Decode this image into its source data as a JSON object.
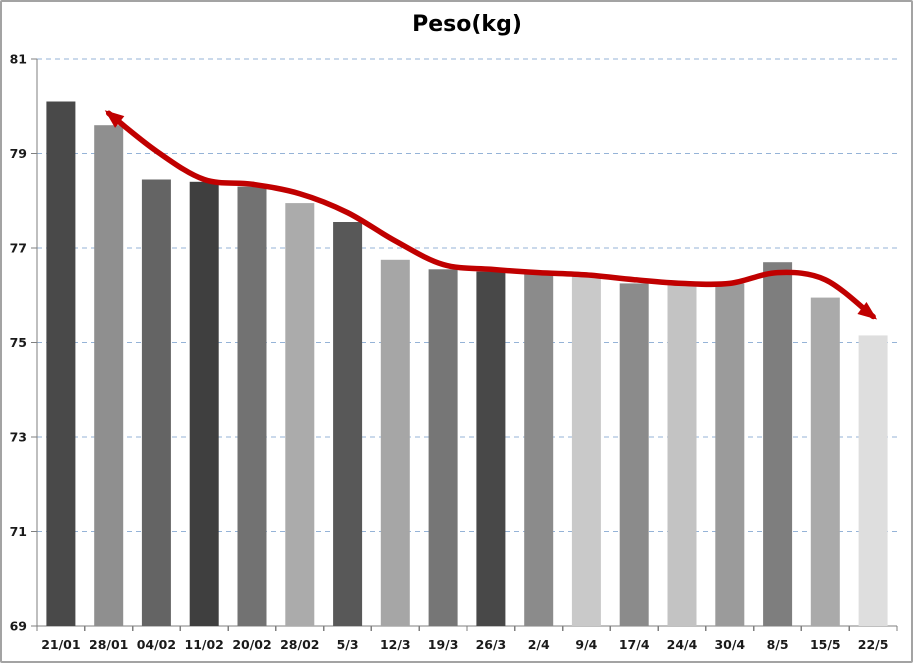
{
  "chart_data": {
    "type": "bar",
    "title": "Peso(kg)",
    "categories": [
      "21/01",
      "28/01",
      "04/02",
      "11/02",
      "20/02",
      "28/02",
      "5/3",
      "12/3",
      "19/3",
      "26/3",
      "2/4",
      "9/4",
      "17/4",
      "24/4",
      "30/4",
      "8/5",
      "15/5",
      "22/5"
    ],
    "series": [
      {
        "name": "peso-bars",
        "type": "bar",
        "values": [
          80.1,
          79.6,
          78.45,
          78.4,
          78.3,
          77.95,
          77.55,
          76.75,
          76.55,
          76.5,
          76.45,
          76.4,
          76.25,
          76.25,
          76.25,
          76.7,
          75.95,
          75.15
        ]
      },
      {
        "name": "trend-line",
        "type": "line",
        "arrow_start": true,
        "arrow_end": true,
        "values": [
          null,
          79.85,
          79.05,
          78.45,
          78.35,
          78.15,
          77.75,
          77.15,
          76.65,
          76.55,
          76.48,
          76.43,
          76.33,
          76.25,
          76.25,
          76.48,
          76.33,
          75.55
        ]
      }
    ],
    "bar_colors": [
      "#494949",
      "#8f8f8f",
      "#646464",
      "#3f3f3f",
      "#727272",
      "#ababab",
      "#585858",
      "#a6a6a6",
      "#767676",
      "#484848",
      "#8b8b8b",
      "#c9c9c9",
      "#8b8b8b",
      "#c3c3c3",
      "#9b9b9b",
      "#7e7e7e",
      "#aaaaaa",
      "#dedede"
    ],
    "yticks": [
      81,
      79,
      77,
      75,
      73,
      71,
      69
    ],
    "ylim": [
      69,
      81
    ],
    "xlabel": "",
    "ylabel": "",
    "grid": "horizontal-dashed",
    "legend_position": "none",
    "colors": {
      "line": "#c00000",
      "gridline": "#95b3d7",
      "axis": "#7f7f7f",
      "text": "#1a1a1a",
      "panel_border": "#a3a3a3",
      "background": "#ffffff"
    }
  }
}
